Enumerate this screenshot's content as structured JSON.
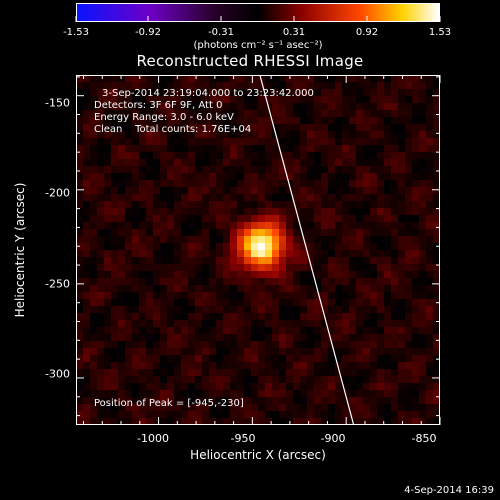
{
  "colorbar": {
    "ticks": [
      "-1.53",
      "-0.92",
      "-0.31",
      "0.31",
      "0.92",
      "1.53"
    ],
    "unit": "(photons cm⁻² s⁻¹ asec⁻²)",
    "range": [
      -1.53,
      1.53
    ]
  },
  "title": "Reconstructed RHESSI Image",
  "info": {
    "time_range": "3-Sep-2014 23:19:04.000 to 23:23:42.000",
    "detectors": "Detectors: 3F 6F 9F, Att 0",
    "energy": "Energy Range: 3.0 - 6.0 keV",
    "clean": "Clean    Total counts: 1.76E+04",
    "peak": "Position of Peak = [-945,-230]"
  },
  "axes": {
    "xlabel": "Heliocentric X (arcsec)",
    "ylabel": "Heliocentric Y (arcsec)",
    "xticks": [
      "-1000",
      "-950",
      "-900",
      "-850"
    ],
    "yticks": [
      "-150",
      "-200",
      "-250",
      "-300"
    ],
    "xlim": [
      -1044,
      -850
    ],
    "ylim": [
      -325,
      -139
    ]
  },
  "chart_data": {
    "type": "heatmap",
    "title": "Reconstructed RHESSI Image",
    "xlabel": "Heliocentric X (arcsec)",
    "ylabel": "Heliocentric Y (arcsec)",
    "xlim": [
      -1044,
      -850
    ],
    "ylim": [
      -325,
      -139
    ],
    "colormap": "hot",
    "color_range": [
      -1.53,
      1.53
    ],
    "peak": {
      "x": -945,
      "y": -230
    },
    "limb_line": {
      "x": [
        -946,
        -896
      ],
      "y": [
        -139,
        -325
      ]
    }
  },
  "footer": {
    "date": "4-Sep-2014 16:39"
  }
}
